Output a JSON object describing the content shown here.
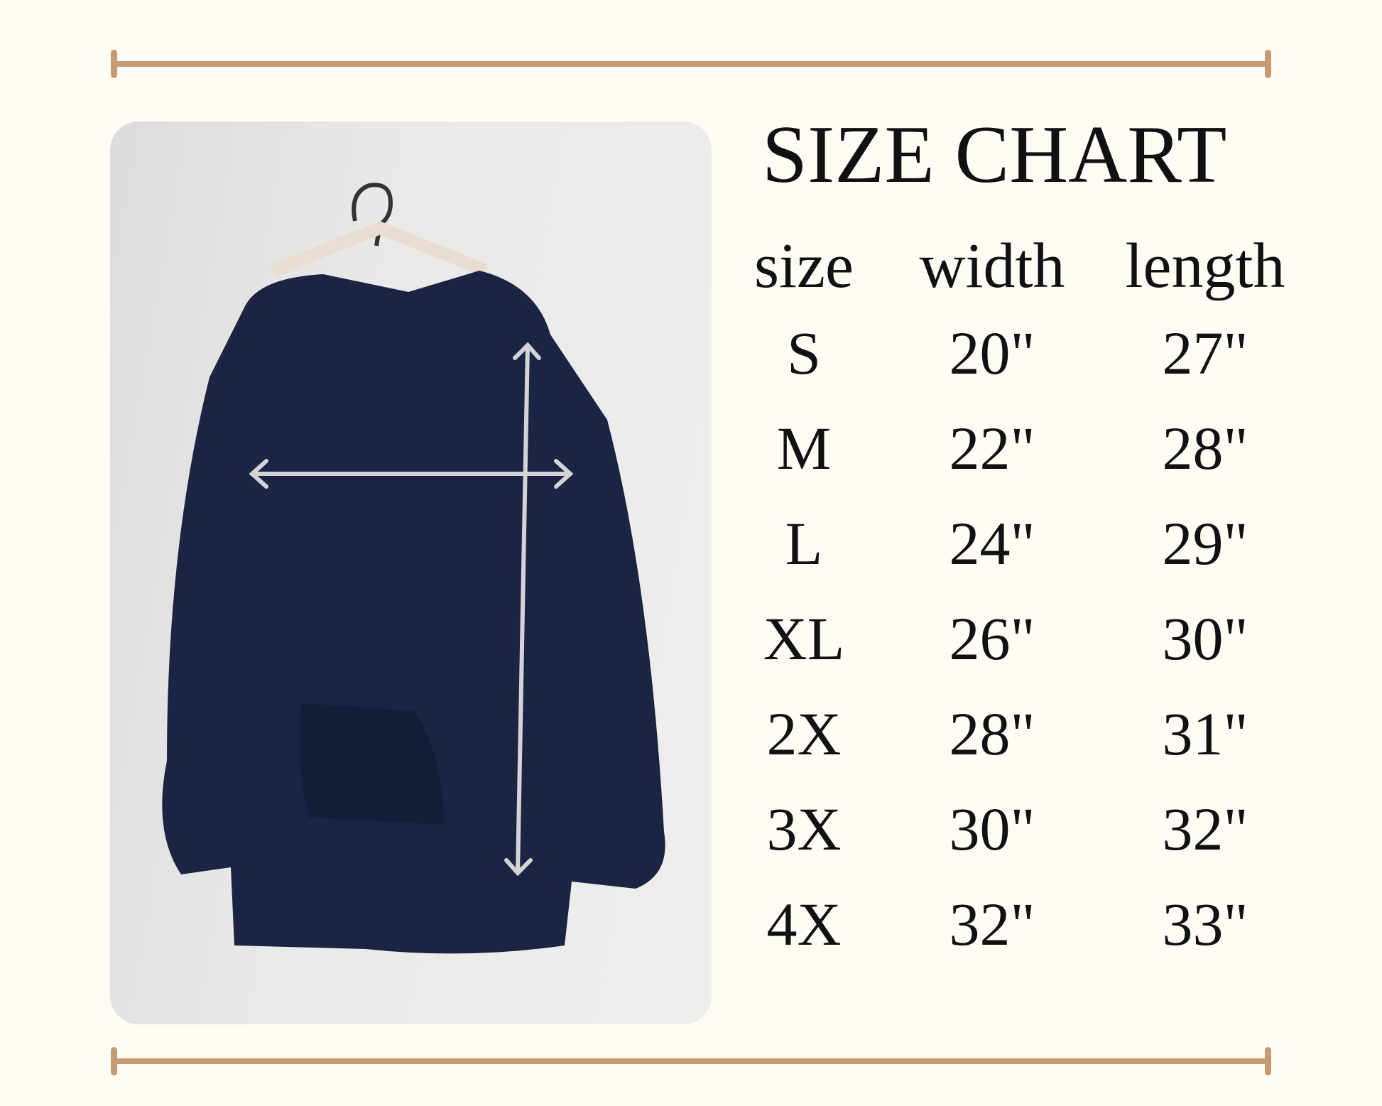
{
  "colors": {
    "background": "#fefcf5",
    "rule": "#c69a72",
    "hoodie": "#1c2444",
    "arrow": "#d4d4d6"
  },
  "photo": {
    "subject": "navy hoodie on hanger",
    "icons": [
      "width-arrow-icon",
      "length-arrow-icon"
    ]
  },
  "title": "SIZE CHART",
  "table": {
    "headers": [
      "size",
      "width",
      "length"
    ],
    "rows": [
      [
        "S",
        "20\"",
        "27\""
      ],
      [
        "M",
        "22\"",
        "28\""
      ],
      [
        "L",
        "24\"",
        "29\""
      ],
      [
        "XL",
        "26\"",
        "30\""
      ],
      [
        "2X",
        "28\"",
        "31\""
      ],
      [
        "3X",
        "30\"",
        "32\""
      ],
      [
        "4X",
        "32\"",
        "33\""
      ]
    ]
  }
}
